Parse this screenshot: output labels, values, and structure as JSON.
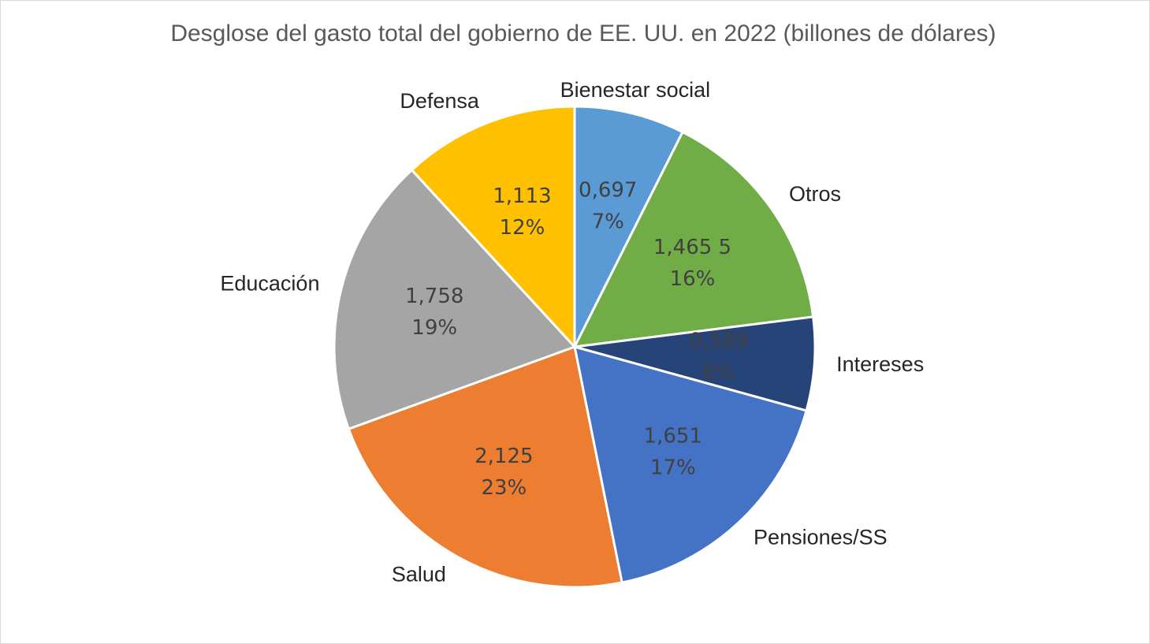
{
  "chart_data": {
    "type": "pie",
    "title": "Desglose del gasto total del gobierno de EE. UU. en 2022 (billones de dólares)",
    "categories": [
      "Bienestar social",
      "Otros",
      "Intereses",
      "Pensiones/SS",
      "Salud",
      "Educación",
      "Defensa"
    ],
    "values": [
      0.697,
      1.4655,
      0.589,
      1.651,
      2.125,
      1.758,
      1.113
    ],
    "value_labels": [
      "0,697",
      "1,465 5",
      "0,589",
      "1,651",
      "2,125",
      "1,758",
      "1,113"
    ],
    "percents": [
      7,
      16,
      6,
      17,
      23,
      19,
      12
    ],
    "percent_labels": [
      "7%",
      "16%",
      "6%",
      "17%",
      "23%",
      "19%",
      "12%"
    ],
    "colors": [
      "#5b9bd5",
      "#70ad47",
      "#264478",
      "#4472c4",
      "#ed7d31",
      "#a5a5a5",
      "#ffc000"
    ]
  }
}
